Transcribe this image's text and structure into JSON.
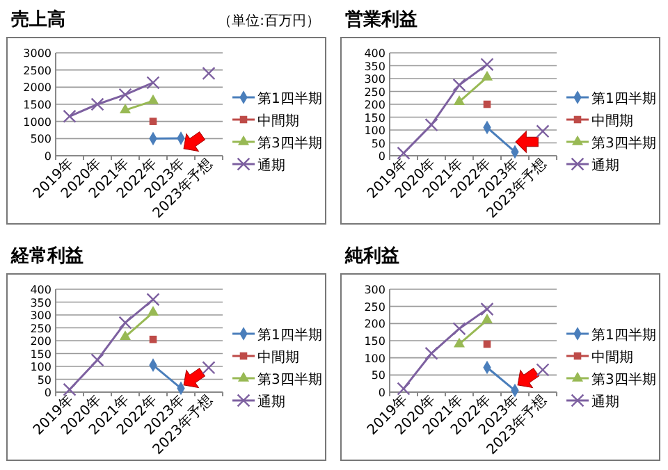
{
  "chart_data": [
    {
      "type": "line",
      "title": "売上高",
      "annotations": [
        "（単位:百万円）"
      ],
      "categories": [
        "2019年",
        "2020年",
        "2021年",
        "2022年",
        "2023年",
        "2023年予想"
      ],
      "ylim": [
        0,
        3000
      ],
      "yticks": [
        0,
        500,
        1000,
        1500,
        2000,
        2500,
        3000
      ],
      "grid": "y",
      "legend": "right",
      "series": [
        {
          "name": "第1四半期",
          "color": "#4a7ebb",
          "marker": "diamond",
          "values": [
            null,
            null,
            null,
            500,
            510,
            null
          ]
        },
        {
          "name": "中間期",
          "color": "#be4b48",
          "marker": "square",
          "values": [
            null,
            null,
            null,
            1000,
            null,
            null
          ]
        },
        {
          "name": "第3四半期",
          "color": "#98b954",
          "marker": "triangle",
          "values": [
            null,
            null,
            1330,
            1600,
            null,
            null
          ]
        },
        {
          "name": "通期",
          "color": "#7d60a0",
          "marker": "cross",
          "values": [
            1150,
            1500,
            1780,
            2130,
            null,
            2400
          ]
        }
      ]
    },
    {
      "type": "line",
      "title": "営業利益",
      "categories": [
        "2019年",
        "2020年",
        "2021年",
        "2022年",
        "2023年",
        "2023年予想"
      ],
      "ylim": [
        0,
        400
      ],
      "yticks": [
        0,
        50,
        100,
        150,
        200,
        250,
        300,
        350,
        400
      ],
      "grid": "y",
      "legend": "right",
      "series": [
        {
          "name": "第1四半期",
          "color": "#4a7ebb",
          "marker": "diamond",
          "values": [
            null,
            null,
            null,
            110,
            15,
            null
          ]
        },
        {
          "name": "中間期",
          "color": "#be4b48",
          "marker": "square",
          "values": [
            null,
            null,
            null,
            200,
            null,
            null
          ]
        },
        {
          "name": "第3四半期",
          "color": "#98b954",
          "marker": "triangle",
          "values": [
            null,
            null,
            210,
            305,
            null,
            null
          ]
        },
        {
          "name": "通期",
          "color": "#7d60a0",
          "marker": "cross",
          "values": [
            10,
            120,
            275,
            355,
            null,
            95
          ]
        }
      ]
    },
    {
      "type": "line",
      "title": "経常利益",
      "categories": [
        "2019年",
        "2020年",
        "2021年",
        "2022年",
        "2023年",
        "2023年予想"
      ],
      "ylim": [
        0,
        400
      ],
      "yticks": [
        0,
        50,
        100,
        150,
        200,
        250,
        300,
        350,
        400
      ],
      "grid": "y",
      "legend": "right",
      "series": [
        {
          "name": "第1四半期",
          "color": "#4a7ebb",
          "marker": "diamond",
          "values": [
            null,
            null,
            null,
            105,
            15,
            null
          ]
        },
        {
          "name": "中間期",
          "color": "#be4b48",
          "marker": "square",
          "values": [
            null,
            null,
            null,
            205,
            null,
            null
          ]
        },
        {
          "name": "第3四半期",
          "color": "#98b954",
          "marker": "triangle",
          "values": [
            null,
            null,
            215,
            310,
            null,
            null
          ]
        },
        {
          "name": "通期",
          "color": "#7d60a0",
          "marker": "cross",
          "values": [
            10,
            125,
            270,
            360,
            null,
            95
          ]
        }
      ]
    },
    {
      "type": "line",
      "title": "純利益",
      "categories": [
        "2019年",
        "2020年",
        "2021年",
        "2022年",
        "2023年",
        "2023年予想"
      ],
      "ylim": [
        0,
        300
      ],
      "yticks": [
        0,
        50,
        100,
        150,
        200,
        250,
        300
      ],
      "grid": "y",
      "legend": "right",
      "series": [
        {
          "name": "第1四半期",
          "color": "#4a7ebb",
          "marker": "diamond",
          "values": [
            null,
            null,
            null,
            72,
            5,
            null
          ]
        },
        {
          "name": "中間期",
          "color": "#be4b48",
          "marker": "square",
          "values": [
            null,
            null,
            null,
            140,
            null,
            null
          ]
        },
        {
          "name": "第3四半期",
          "color": "#98b954",
          "marker": "triangle",
          "values": [
            null,
            null,
            140,
            210,
            null,
            null
          ]
        },
        {
          "name": "通期",
          "color": "#7d60a0",
          "marker": "cross",
          "values": [
            10,
            113,
            185,
            242,
            null,
            65
          ]
        }
      ]
    }
  ]
}
